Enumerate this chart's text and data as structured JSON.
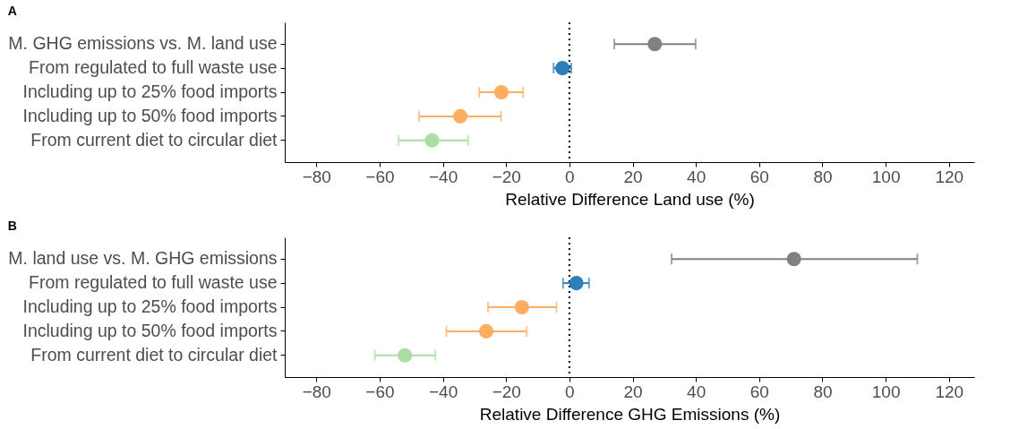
{
  "chart_data": [
    {
      "type": "scatter",
      "title": "A",
      "orientation": "horizontal",
      "xlabel": "Relative Difference Land use (%)",
      "categories": [
        "M. GHG emissions vs. M. land use",
        "From regulated to full waste use",
        "Including up to 25% food imports",
        "Including up to 50% food imports",
        "From current diet to circular diet"
      ],
      "values": [
        27,
        -2.2,
        -21.5,
        -34.5,
        -43.4
      ],
      "errors": [
        [
          14.2,
          39.9
        ],
        [
          -5,
          0.6
        ],
        [
          -28.5,
          -14.6
        ],
        [
          -47.5,
          -21.6
        ],
        [
          -54,
          -32
        ]
      ],
      "colors": [
        "#808080",
        "#2c7fb8",
        "#fdae61",
        "#fdae61",
        "#abdda4"
      ],
      "xlim": [
        -90,
        128
      ],
      "xticks": [
        -80,
        -60,
        -40,
        -20,
        0,
        20,
        40,
        60,
        80,
        100,
        120
      ],
      "ref_lines": [
        {
          "axis": "x",
          "value": 0,
          "color": "#000000",
          "line_style": "dotted"
        }
      ],
      "grid": false,
      "marker": "circle"
    },
    {
      "type": "scatter",
      "title": "B",
      "orientation": "horizontal",
      "xlabel": "Relative Difference GHG Emissions (%)",
      "categories": [
        "M. land use vs. M. GHG emissions",
        "From regulated to full waste use",
        "Including up to 25% food imports",
        "Including up to 50% food imports",
        "From current diet to circular diet"
      ],
      "values": [
        71,
        2.2,
        -15,
        -26.3,
        -52
      ],
      "errors": [
        [
          32.3,
          110
        ],
        [
          -2,
          6.2
        ],
        [
          -25.7,
          -4.1
        ],
        [
          -38.9,
          -13.5
        ],
        [
          -61.5,
          -42.4
        ]
      ],
      "colors": [
        "#808080",
        "#2c7fb8",
        "#fdae61",
        "#fdae61",
        "#abdda4"
      ],
      "xlim": [
        -90,
        128
      ],
      "xticks": [
        -80,
        -60,
        -40,
        -20,
        0,
        20,
        40,
        60,
        80,
        100,
        120
      ],
      "ref_lines": [
        {
          "axis": "x",
          "value": 0,
          "color": "#000000",
          "line_style": "dotted"
        }
      ],
      "grid": false,
      "marker": "circle"
    }
  ]
}
